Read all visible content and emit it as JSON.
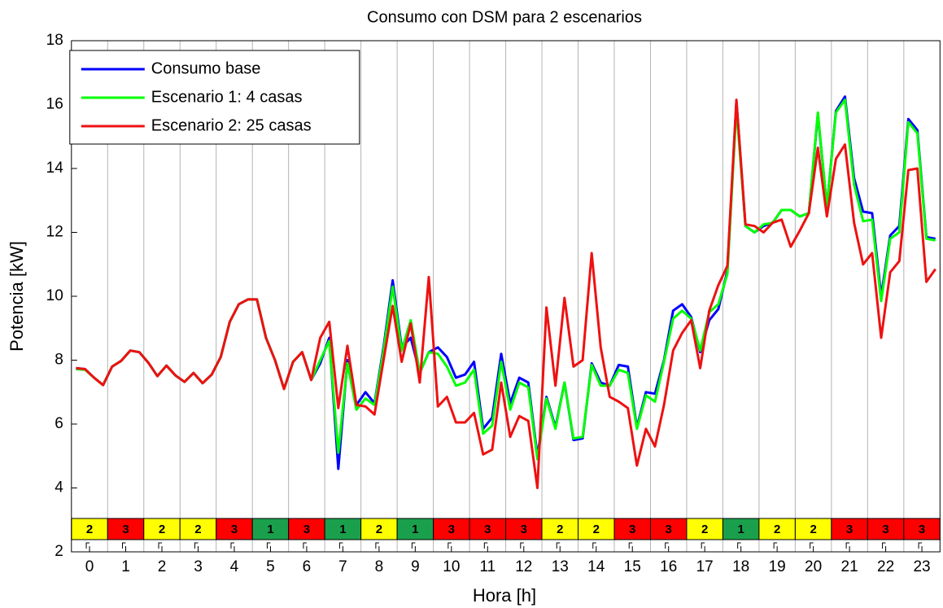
{
  "chart_data": {
    "type": "line",
    "title": "Consumo con DSM para 2 escenarios",
    "xlabel": "Hora [h]",
    "ylabel": "Potencia [kW]",
    "x": [
      -0.375,
      -0.125,
      0.125,
      0.375,
      0.625,
      0.875,
      1.125,
      1.375,
      1.625,
      1.875,
      2.125,
      2.375,
      2.625,
      2.875,
      3.125,
      3.375,
      3.625,
      3.875,
      4.125,
      4.375,
      4.625,
      4.875,
      5.125,
      5.375,
      5.625,
      5.875,
      6.125,
      6.375,
      6.625,
      6.875,
      7.125,
      7.375,
      7.625,
      7.875,
      8.125,
      8.375,
      8.625,
      8.875,
      9.125,
      9.375,
      9.625,
      9.875,
      10.125,
      10.375,
      10.625,
      10.875,
      11.125,
      11.375,
      11.625,
      11.875,
      12.125,
      12.375,
      12.625,
      12.875,
      13.125,
      13.375,
      13.625,
      13.875,
      14.125,
      14.375,
      14.625,
      14.875,
      15.125,
      15.375,
      15.625,
      15.875,
      16.125,
      16.375,
      16.625,
      16.875,
      17.125,
      17.375,
      17.625,
      17.875,
      18.125,
      18.375,
      18.625,
      18.875,
      19.125,
      19.375,
      19.625,
      19.875,
      20.125,
      20.375,
      20.625,
      20.875,
      21.125,
      21.375,
      21.625,
      21.875,
      22.125,
      22.375,
      22.625,
      22.875,
      23.125,
      23.375
    ],
    "series": [
      {
        "name": "Consumo base",
        "color": "#0000ff",
        "values": [
          7.75,
          7.72,
          7.45,
          7.22,
          7.8,
          7.98,
          8.3,
          8.25,
          7.92,
          7.5,
          7.83,
          7.52,
          7.32,
          7.6,
          7.28,
          7.55,
          8.1,
          9.2,
          9.75,
          9.9,
          9.9,
          8.7,
          8.0,
          7.1,
          7.95,
          8.25,
          7.38,
          7.9,
          8.7,
          4.6,
          8.0,
          6.6,
          7.0,
          6.65,
          8.4,
          10.5,
          8.4,
          8.7,
          7.6,
          8.25,
          8.4,
          8.1,
          7.45,
          7.55,
          7.95,
          5.85,
          6.2,
          8.2,
          6.65,
          7.45,
          7.3,
          5.0,
          6.85,
          5.9,
          7.3,
          5.5,
          5.55,
          7.9,
          7.3,
          7.2,
          7.85,
          7.8,
          5.9,
          7.0,
          6.95,
          8.0,
          9.55,
          9.75,
          9.35,
          8.25,
          9.25,
          9.6,
          10.8,
          16.1,
          12.2,
          12.0,
          12.2,
          12.3,
          12.7,
          12.7,
          12.5,
          12.6,
          15.7,
          12.8,
          15.8,
          16.25,
          13.7,
          12.65,
          12.6,
          10.0,
          11.9,
          12.2,
          15.55,
          15.2,
          11.85,
          11.8
        ]
      },
      {
        "name": "Escenario 1: 4 casas",
        "color": "#00ff00",
        "values": [
          7.72,
          7.7,
          7.45,
          7.22,
          7.8,
          7.98,
          8.3,
          8.25,
          7.92,
          7.5,
          7.83,
          7.52,
          7.32,
          7.6,
          7.28,
          7.55,
          8.1,
          9.2,
          9.75,
          9.9,
          9.9,
          8.7,
          8.0,
          7.1,
          7.95,
          8.25,
          7.38,
          8.0,
          8.6,
          5.1,
          7.9,
          6.45,
          6.8,
          6.6,
          8.3,
          10.3,
          8.3,
          9.25,
          7.6,
          8.25,
          8.2,
          7.8,
          7.2,
          7.3,
          7.7,
          5.7,
          5.95,
          7.95,
          6.45,
          7.3,
          7.15,
          4.9,
          6.8,
          5.85,
          7.3,
          5.55,
          5.6,
          7.85,
          7.2,
          7.2,
          7.7,
          7.6,
          5.85,
          6.9,
          6.7,
          7.95,
          9.3,
          9.55,
          9.3,
          8.3,
          9.5,
          9.75,
          10.7,
          15.9,
          12.2,
          12.0,
          12.25,
          12.3,
          12.7,
          12.7,
          12.5,
          12.6,
          15.75,
          12.8,
          15.75,
          16.15,
          13.5,
          12.35,
          12.4,
          9.85,
          11.8,
          12.0,
          15.45,
          15.1,
          11.8,
          11.75
        ]
      },
      {
        "name": "Escenario 2: 25 casas",
        "color": "#ee1111",
        "values": [
          7.75,
          7.72,
          7.45,
          7.22,
          7.8,
          7.98,
          8.3,
          8.25,
          7.92,
          7.5,
          7.83,
          7.52,
          7.32,
          7.6,
          7.28,
          7.55,
          8.1,
          9.2,
          9.75,
          9.9,
          9.9,
          8.7,
          8.0,
          7.1,
          7.95,
          8.25,
          7.38,
          8.7,
          9.2,
          6.5,
          8.45,
          6.6,
          6.55,
          6.3,
          8.0,
          9.7,
          7.95,
          9.15,
          7.3,
          10.6,
          6.55,
          6.85,
          6.05,
          6.05,
          6.35,
          5.05,
          5.2,
          7.3,
          5.6,
          6.25,
          6.1,
          4.0,
          9.65,
          7.2,
          9.95,
          7.8,
          8.0,
          11.35,
          8.4,
          6.85,
          6.7,
          6.5,
          4.7,
          5.85,
          5.3,
          6.6,
          8.3,
          8.85,
          9.25,
          7.75,
          9.55,
          10.35,
          10.95,
          16.15,
          12.25,
          12.2,
          12.0,
          12.3,
          12.4,
          11.55,
          12.05,
          12.6,
          14.65,
          12.5,
          14.3,
          14.75,
          12.3,
          11.0,
          11.35,
          8.7,
          10.75,
          11.1,
          13.95,
          14.0,
          10.45,
          10.85
        ]
      }
    ],
    "tariff": [
      2,
      3,
      2,
      2,
      3,
      1,
      3,
      1,
      2,
      1,
      3,
      3,
      3,
      2,
      2,
      3,
      3,
      2,
      1,
      2,
      2,
      3,
      3,
      3
    ],
    "tariff_colors": [
      "#1aa04c",
      "#ffff00",
      "#ff0000"
    ],
    "xlim": [
      -0.5,
      23.5
    ],
    "xticks": [
      0,
      1,
      2,
      3,
      4,
      5,
      6,
      7,
      8,
      9,
      10,
      11,
      12,
      13,
      14,
      15,
      16,
      17,
      18,
      19,
      20,
      21,
      22,
      23
    ],
    "ylim": [
      2,
      18
    ],
    "yticks": [
      2,
      4,
      6,
      8,
      10,
      12,
      14,
      16,
      18
    ],
    "grid": true,
    "legend": "upper left"
  }
}
